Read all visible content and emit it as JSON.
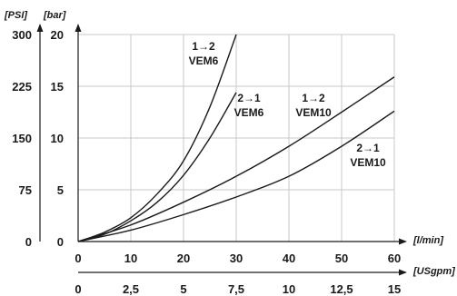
{
  "chart_data": {
    "type": "line",
    "xlim": [
      0,
      60
    ],
    "ylim": [
      0,
      20
    ],
    "grid": true,
    "x_ticks": [
      "0",
      "10",
      "20",
      "30",
      "40",
      "50",
      "60"
    ],
    "x_unit": "[l/min]",
    "x2_ticks": [
      "0",
      "2,5",
      "5",
      "7,5",
      "10",
      "12,5",
      "15"
    ],
    "x2_unit": "[USgpm]",
    "y_ticks": [
      "0",
      "5",
      "10",
      "15",
      "20"
    ],
    "y_unit": "[bar]",
    "y2_ticks": [
      "0",
      "75",
      "150",
      "225",
      "300"
    ],
    "y2_unit": "[PSI]",
    "series": [
      {
        "name": "1→2 VEM6",
        "label_lines": [
          "1→2",
          "VEM6"
        ],
        "x": [
          0,
          5,
          10,
          15,
          20,
          25,
          30
        ],
        "y": [
          0,
          0.9,
          2.3,
          4.6,
          7.8,
          13.0,
          20.0
        ]
      },
      {
        "name": "2→1 VEM6",
        "label_lines": [
          "2→1",
          "VEM6"
        ],
        "x": [
          0,
          5,
          10,
          15,
          20,
          25,
          30
        ],
        "y": [
          0,
          0.7,
          2.0,
          3.8,
          6.4,
          10.0,
          14.4
        ]
      },
      {
        "name": "1→2 VEM10",
        "label_lines": [
          "1→2",
          "VEM10"
        ],
        "x": [
          0,
          10,
          20,
          30,
          40,
          50,
          60
        ],
        "y": [
          0,
          1.6,
          3.8,
          6.3,
          9.2,
          12.5,
          15.9
        ]
      },
      {
        "name": "2→1 VEM10",
        "label_lines": [
          "2→1",
          "VEM10"
        ],
        "x": [
          0,
          10,
          20,
          30,
          40,
          50,
          60
        ],
        "y": [
          0,
          1.1,
          2.6,
          4.3,
          6.3,
          9.2,
          12.6
        ]
      }
    ]
  }
}
